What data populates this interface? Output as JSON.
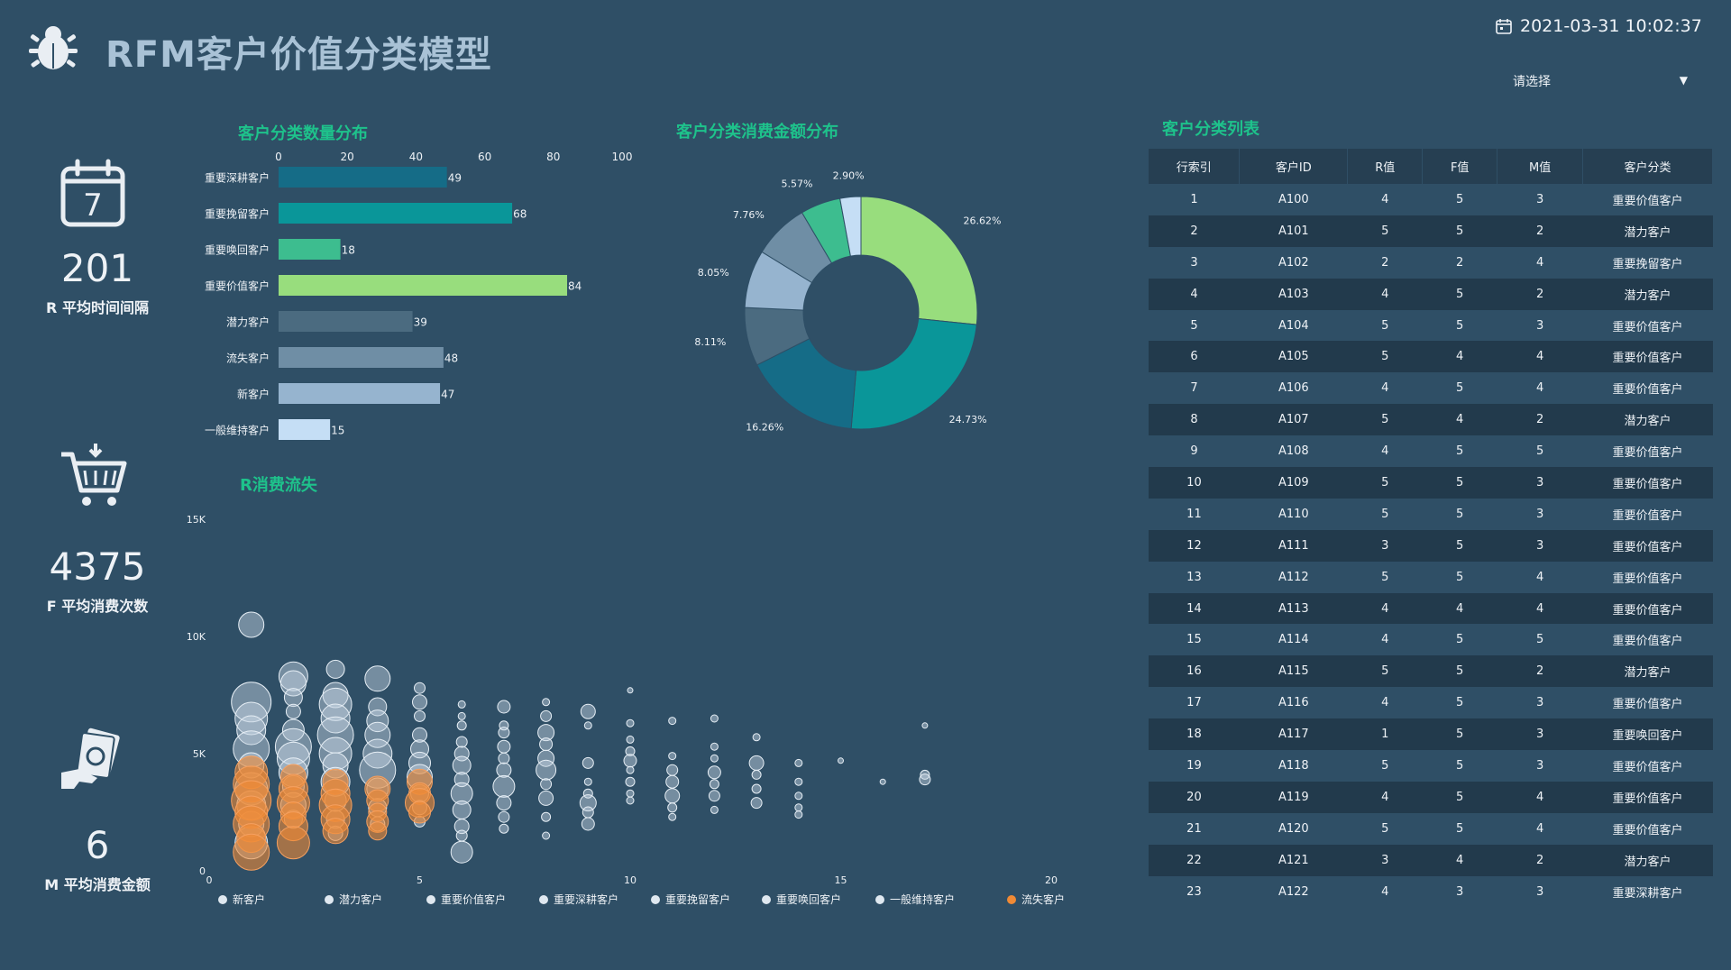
{
  "header": {
    "title": "RFM客户价值分类模型",
    "datetime": "2021-03-31 10:02:37",
    "select_placeholder": "请选择"
  },
  "kpis": [
    {
      "value": "201",
      "label": "R 平均时间间隔",
      "icon": "calendar-7-icon"
    },
    {
      "value": "4375",
      "label": "F 平均消费次数",
      "icon": "shopping-cart-icon"
    },
    {
      "value": "6",
      "label": "M 平均消费金额",
      "icon": "money-hand-icon"
    }
  ],
  "bar_section_title": "客户分类数量分布",
  "pie_section_title": "客户分类消费金额分布",
  "scatter_section_title": "R消费流失",
  "table_section_title": "客户分类列表",
  "chart_data": [
    {
      "type": "bar",
      "orientation": "horizontal",
      "categories": [
        "重要深耕客户",
        "重要挽留客户",
        "重要唤回客户",
        "重要价值客户",
        "潜力客户",
        "流失客户",
        "新客户",
        "一般维持客户"
      ],
      "values": [
        49,
        68,
        18,
        84,
        39,
        48,
        47,
        15
      ],
      "colors": [
        "#156c87",
        "#0a9699",
        "#3dbd8f",
        "#98dd7d",
        "#4b6b80",
        "#6f8ea5",
        "#96b4cf",
        "#c5def5"
      ],
      "xlim": [
        0,
        100
      ],
      "xticks": [
        0,
        20,
        40,
        60,
        80,
        100
      ],
      "grid": false
    },
    {
      "type": "pie",
      "style": "donut",
      "slices": [
        {
          "value": 26.62,
          "label": "26.62%",
          "color": "#98dd7d"
        },
        {
          "value": 24.73,
          "label": "24.73%",
          "color": "#0a9699"
        },
        {
          "value": 16.26,
          "label": "16.26%",
          "color": "#156c87"
        },
        {
          "value": 8.11,
          "label": "8.11%",
          "color": "#4b6b80"
        },
        {
          "value": 8.05,
          "label": "8.05%",
          "color": "#96b4cf"
        },
        {
          "value": 7.76,
          "label": "7.76%",
          "color": "#6f8ea5"
        },
        {
          "value": 5.57,
          "label": "5.57%",
          "color": "#3dbd8f"
        },
        {
          "value": 2.9,
          "label": "2.90%",
          "color": "#c5def5"
        }
      ]
    },
    {
      "type": "scatter",
      "style": "bubble",
      "xlim": [
        0,
        20
      ],
      "ylim": [
        0,
        15000
      ],
      "xticks": [
        "0",
        "5",
        "10",
        "15",
        "20"
      ],
      "yticks": [
        "0",
        "5K",
        "10K",
        "15K"
      ],
      "legend_position": "bottom",
      "series": [
        {
          "name": "新客户",
          "color": "#dfe8f0"
        },
        {
          "name": "潜力客户",
          "color": "#dfe8f0"
        },
        {
          "name": "重要价值客户",
          "color": "#dfe8f0"
        },
        {
          "name": "重要深耕客户",
          "color": "#dfe8f0"
        },
        {
          "name": "重要挽留客户",
          "color": "#dfe8f0"
        },
        {
          "name": "重要唤回客户",
          "color": "#dfe8f0"
        },
        {
          "name": "一般维持客户",
          "color": "#dfe8f0"
        },
        {
          "name": "流失客户",
          "color": "#f08a35"
        }
      ],
      "points_light": [
        [
          1,
          10500,
          14
        ],
        [
          1,
          7200,
          22
        ],
        [
          1,
          6500,
          18
        ],
        [
          1,
          6000,
          16
        ],
        [
          1,
          5200,
          20
        ],
        [
          1,
          4500,
          14
        ],
        [
          1,
          3500,
          18
        ],
        [
          1,
          2800,
          16
        ],
        [
          1,
          2000,
          14
        ],
        [
          1,
          1200,
          18
        ],
        [
          2,
          8300,
          16
        ],
        [
          2,
          8000,
          14
        ],
        [
          2,
          7400,
          10
        ],
        [
          2,
          6800,
          8
        ],
        [
          2,
          6000,
          12
        ],
        [
          2,
          5300,
          20
        ],
        [
          2,
          4800,
          18
        ],
        [
          2,
          4200,
          16
        ],
        [
          2,
          3600,
          12
        ],
        [
          2,
          2800,
          14
        ],
        [
          2,
          2200,
          10
        ],
        [
          3,
          8600,
          10
        ],
        [
          3,
          7500,
          14
        ],
        [
          3,
          7100,
          18
        ],
        [
          3,
          6500,
          16
        ],
        [
          3,
          5800,
          20
        ],
        [
          3,
          5000,
          18
        ],
        [
          3,
          4500,
          14
        ],
        [
          3,
          3800,
          16
        ],
        [
          3,
          3000,
          12
        ],
        [
          3,
          2200,
          10
        ],
        [
          3,
          1600,
          8
        ],
        [
          4,
          8200,
          14
        ],
        [
          4,
          7000,
          10
        ],
        [
          4,
          6400,
          12
        ],
        [
          4,
          5800,
          14
        ],
        [
          4,
          5000,
          16
        ],
        [
          4,
          4300,
          20
        ],
        [
          4,
          3500,
          12
        ],
        [
          4,
          2700,
          10
        ],
        [
          4,
          2000,
          8
        ],
        [
          5,
          7800,
          6
        ],
        [
          5,
          7200,
          8
        ],
        [
          5,
          6600,
          6
        ],
        [
          5,
          5800,
          8
        ],
        [
          5,
          5200,
          10
        ],
        [
          5,
          4600,
          12
        ],
        [
          5,
          4000,
          14
        ],
        [
          5,
          3300,
          10
        ],
        [
          5,
          2700,
          8
        ],
        [
          5,
          2100,
          6
        ],
        [
          6,
          7100,
          4
        ],
        [
          6,
          6600,
          4
        ],
        [
          6,
          6200,
          5
        ],
        [
          6,
          5500,
          6
        ],
        [
          6,
          5000,
          8
        ],
        [
          6,
          4500,
          10
        ],
        [
          6,
          3900,
          8
        ],
        [
          6,
          3300,
          12
        ],
        [
          6,
          2600,
          10
        ],
        [
          6,
          1900,
          8
        ],
        [
          6,
          1500,
          6
        ],
        [
          6,
          800,
          12
        ],
        [
          7,
          7000,
          7
        ],
        [
          7,
          6200,
          5
        ],
        [
          7,
          5900,
          6
        ],
        [
          7,
          5300,
          7
        ],
        [
          7,
          4800,
          6
        ],
        [
          7,
          4300,
          8
        ],
        [
          7,
          3600,
          12
        ],
        [
          7,
          2900,
          8
        ],
        [
          7,
          2300,
          6
        ],
        [
          7,
          1800,
          5
        ],
        [
          8,
          7200,
          4
        ],
        [
          8,
          6600,
          6
        ],
        [
          8,
          5900,
          9
        ],
        [
          8,
          5400,
          7
        ],
        [
          8,
          4800,
          9
        ],
        [
          8,
          4300,
          11
        ],
        [
          8,
          3700,
          6
        ],
        [
          8,
          3100,
          8
        ],
        [
          8,
          2300,
          5
        ],
        [
          8,
          1500,
          4
        ],
        [
          9,
          6800,
          8
        ],
        [
          9,
          6200,
          4
        ],
        [
          9,
          4600,
          6
        ],
        [
          9,
          3800,
          4
        ],
        [
          9,
          3300,
          5
        ],
        [
          9,
          2900,
          9
        ],
        [
          9,
          2500,
          6
        ],
        [
          9,
          2000,
          7
        ],
        [
          10,
          7700,
          3
        ],
        [
          10,
          6300,
          4
        ],
        [
          10,
          5600,
          4
        ],
        [
          10,
          5100,
          5
        ],
        [
          10,
          4700,
          7
        ],
        [
          10,
          4300,
          4
        ],
        [
          10,
          3800,
          5
        ],
        [
          10,
          3300,
          4
        ],
        [
          10,
          3000,
          4
        ],
        [
          11,
          6400,
          4
        ],
        [
          11,
          4900,
          4
        ],
        [
          11,
          4300,
          6
        ],
        [
          11,
          3800,
          7
        ],
        [
          11,
          3200,
          8
        ],
        [
          11,
          2700,
          5
        ],
        [
          11,
          2300,
          4
        ],
        [
          12,
          6500,
          4
        ],
        [
          12,
          5300,
          4
        ],
        [
          12,
          4800,
          4
        ],
        [
          12,
          4200,
          7
        ],
        [
          12,
          3700,
          5
        ],
        [
          12,
          3200,
          6
        ],
        [
          12,
          2600,
          4
        ],
        [
          13,
          5700,
          4
        ],
        [
          13,
          4600,
          8
        ],
        [
          13,
          4100,
          5
        ],
        [
          13,
          3500,
          5
        ],
        [
          13,
          2900,
          6
        ],
        [
          14,
          4600,
          4
        ],
        [
          14,
          3800,
          4
        ],
        [
          14,
          3200,
          4
        ],
        [
          14,
          2700,
          4
        ],
        [
          14,
          2400,
          4
        ],
        [
          15,
          4700,
          3
        ],
        [
          16,
          3800,
          3
        ],
        [
          17,
          6200,
          3
        ],
        [
          17,
          4100,
          5
        ],
        [
          17,
          3900,
          6
        ]
      ],
      "points_orange": [
        [
          1,
          4200,
          18
        ],
        [
          1,
          3700,
          20
        ],
        [
          1,
          3000,
          22
        ],
        [
          1,
          2500,
          18
        ],
        [
          1,
          2000,
          20
        ],
        [
          1,
          1400,
          16
        ],
        [
          1,
          800,
          20
        ],
        [
          2,
          4000,
          14
        ],
        [
          2,
          3500,
          16
        ],
        [
          2,
          2900,
          18
        ],
        [
          2,
          2400,
          14
        ],
        [
          2,
          1900,
          16
        ],
        [
          2,
          1200,
          18
        ],
        [
          3,
          3800,
          14
        ],
        [
          3,
          3300,
          16
        ],
        [
          3,
          2800,
          18
        ],
        [
          3,
          2200,
          16
        ],
        [
          3,
          1700,
          14
        ],
        [
          4,
          3500,
          14
        ],
        [
          4,
          3000,
          12
        ],
        [
          4,
          2500,
          10
        ],
        [
          4,
          2100,
          12
        ],
        [
          4,
          1700,
          10
        ],
        [
          5,
          3800,
          14
        ],
        [
          5,
          3300,
          12
        ],
        [
          5,
          2900,
          16
        ],
        [
          5,
          2500,
          12
        ]
      ]
    }
  ],
  "table": {
    "columns": [
      "行索引",
      "客户ID",
      "R值",
      "F值",
      "M值",
      "客户分类"
    ],
    "rows": [
      [
        "1",
        "A100",
        "4",
        "5",
        "3",
        "重要价值客户"
      ],
      [
        "2",
        "A101",
        "5",
        "5",
        "2",
        "潜力客户"
      ],
      [
        "3",
        "A102",
        "2",
        "2",
        "4",
        "重要挽留客户"
      ],
      [
        "4",
        "A103",
        "4",
        "5",
        "2",
        "潜力客户"
      ],
      [
        "5",
        "A104",
        "5",
        "5",
        "3",
        "重要价值客户"
      ],
      [
        "6",
        "A105",
        "5",
        "4",
        "4",
        "重要价值客户"
      ],
      [
        "7",
        "A106",
        "4",
        "5",
        "4",
        "重要价值客户"
      ],
      [
        "8",
        "A107",
        "5",
        "4",
        "2",
        "潜力客户"
      ],
      [
        "9",
        "A108",
        "4",
        "5",
        "5",
        "重要价值客户"
      ],
      [
        "10",
        "A109",
        "5",
        "5",
        "3",
        "重要价值客户"
      ],
      [
        "11",
        "A110",
        "5",
        "5",
        "3",
        "重要价值客户"
      ],
      [
        "12",
        "A111",
        "3",
        "5",
        "3",
        "重要价值客户"
      ],
      [
        "13",
        "A112",
        "5",
        "5",
        "4",
        "重要价值客户"
      ],
      [
        "14",
        "A113",
        "4",
        "4",
        "4",
        "重要价值客户"
      ],
      [
        "15",
        "A114",
        "4",
        "5",
        "5",
        "重要价值客户"
      ],
      [
        "16",
        "A115",
        "5",
        "5",
        "2",
        "潜力客户"
      ],
      [
        "17",
        "A116",
        "4",
        "5",
        "3",
        "重要价值客户"
      ],
      [
        "18",
        "A117",
        "1",
        "5",
        "3",
        "重要唤回客户"
      ],
      [
        "19",
        "A118",
        "5",
        "5",
        "3",
        "重要价值客户"
      ],
      [
        "20",
        "A119",
        "4",
        "5",
        "4",
        "重要价值客户"
      ],
      [
        "21",
        "A120",
        "5",
        "5",
        "4",
        "重要价值客户"
      ],
      [
        "22",
        "A121",
        "3",
        "4",
        "2",
        "潜力客户"
      ],
      [
        "23",
        "A122",
        "4",
        "3",
        "3",
        "重要深耕客户"
      ]
    ]
  }
}
